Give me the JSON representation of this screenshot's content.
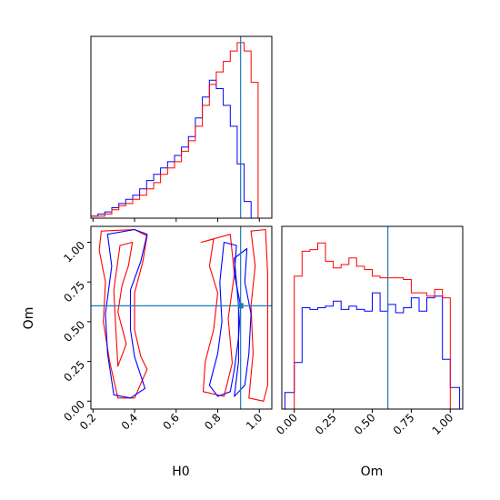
{
  "chart_data": [
    {
      "panel": "H0 marginal",
      "type": "histogram-step",
      "xlim": [
        0.19,
        1.06
      ],
      "truth_x": 0.91,
      "bin_edges": [
        0.19,
        0.2235,
        0.257,
        0.2905,
        0.324,
        0.3575,
        0.391,
        0.4245,
        0.458,
        0.4915,
        0.525,
        0.5585,
        0.592,
        0.6255,
        0.659,
        0.6925,
        0.726,
        0.7595,
        0.793,
        0.8265,
        0.86,
        0.8935,
        0.927,
        0.9605,
        0.994,
        1.0275,
        1.061
      ],
      "series": [
        {
          "name": "",
          "color": "#0000ff",
          "values": [
            1,
            2,
            3,
            5,
            7,
            9,
            11,
            14,
            18,
            21,
            24,
            27,
            30,
            34,
            39,
            48,
            58,
            66,
            62,
            54,
            44,
            26,
            8,
            0,
            0,
            0
          ]
        },
        {
          "name": "",
          "color": "#ff0000",
          "values": [
            1,
            1,
            2,
            4,
            6,
            7,
            9,
            11,
            14,
            17,
            21,
            24,
            27,
            32,
            37,
            44,
            54,
            64,
            70,
            75,
            80,
            84,
            80,
            65,
            0,
            0
          ]
        }
      ],
      "ylim": [
        0,
        87
      ]
    },
    {
      "panel": "Om marginal",
      "type": "histogram-step",
      "xlim": [
        -0.08,
        1.08
      ],
      "truth_x": 0.6,
      "xticks": [
        "0.00",
        "0.25",
        "0.50",
        "0.75",
        "1.00"
      ],
      "xlabel": "Om",
      "bin_edges": [
        -0.06,
        0.0,
        0.05,
        0.1,
        0.15,
        0.2,
        0.25,
        0.3,
        0.35,
        0.4,
        0.45,
        0.5,
        0.55,
        0.6,
        0.65,
        0.7,
        0.75,
        0.8,
        0.85,
        0.9,
        0.95,
        1.0,
        1.06
      ],
      "series": [
        {
          "name": "",
          "color": "#0000ff",
          "values": [
            10,
            28,
            61,
            60,
            61,
            62,
            65,
            60,
            62,
            60,
            59,
            70,
            59,
            63,
            58,
            61,
            67,
            59,
            67,
            68,
            30,
            13
          ]
        },
        {
          "name": "",
          "color": "#ff0000",
          "values": [
            0,
            80,
            95,
            96,
            100,
            89,
            85,
            87,
            91,
            86,
            84,
            80,
            79,
            79,
            79,
            78,
            70,
            70,
            68,
            72,
            67,
            0
          ]
        }
      ],
      "ylim": [
        0,
        110
      ]
    },
    {
      "panel": "H0 vs Om joint",
      "type": "contour",
      "xlim": [
        0.19,
        1.06
      ],
      "ylim": [
        -0.05,
        1.1
      ],
      "xticks": [
        "0.2",
        "0.4",
        "0.6",
        "0.8",
        "1.0"
      ],
      "yticks": [
        "0.00",
        "0.25",
        "0.50",
        "0.75",
        "1.00"
      ],
      "xlabel": "H0",
      "ylabel": "Om",
      "truth": {
        "x": 0.91,
        "y": 0.6
      },
      "series": [
        {
          "name": "",
          "color": "#ff0000",
          "contours": [
            [
              [
                0.24,
                1.07
              ],
              [
                0.4,
                1.08
              ],
              [
                0.46,
                1.04
              ],
              [
                0.44,
                0.88
              ],
              [
                0.4,
                0.68
              ],
              [
                0.4,
                0.45
              ],
              [
                0.43,
                0.28
              ],
              [
                0.46,
                0.2
              ],
              [
                0.42,
                0.08
              ],
              [
                0.4,
                0.02
              ],
              [
                0.32,
                0.02
              ],
              [
                0.28,
                0.25
              ],
              [
                0.25,
                0.5
              ],
              [
                0.26,
                0.75
              ],
              [
                0.23,
                0.95
              ],
              [
                0.24,
                1.07
              ]
            ],
            [
              [
                0.33,
                0.98
              ],
              [
                0.39,
                1.0
              ],
              [
                0.37,
                0.85
              ],
              [
                0.34,
                0.73
              ],
              [
                0.32,
                0.56
              ],
              [
                0.36,
                0.36
              ],
              [
                0.32,
                0.22
              ],
              [
                0.31,
                0.45
              ],
              [
                0.3,
                0.7
              ],
              [
                0.33,
                0.98
              ]
            ],
            [
              [
                0.72,
                1.0
              ],
              [
                0.78,
                1.02
              ],
              [
                0.76,
                0.85
              ],
              [
                0.8,
                0.68
              ],
              [
                0.78,
                0.45
              ],
              [
                0.74,
                0.25
              ],
              [
                0.73,
                0.06
              ],
              [
                0.83,
                0.03
              ],
              [
                0.87,
                0.24
              ],
              [
                0.85,
                0.52
              ],
              [
                0.88,
                0.8
              ],
              [
                0.86,
                1.05
              ],
              [
                0.72,
                1.0
              ]
            ],
            [
              [
                0.96,
                1.07
              ],
              [
                1.03,
                1.08
              ],
              [
                1.04,
                0.8
              ],
              [
                1.04,
                0.45
              ],
              [
                1.04,
                0.1
              ],
              [
                1.02,
                0.0
              ],
              [
                0.95,
                0.02
              ],
              [
                0.97,
                0.3
              ],
              [
                0.96,
                0.6
              ],
              [
                0.98,
                0.85
              ],
              [
                0.96,
                1.07
              ]
            ]
          ]
        },
        {
          "name": "",
          "color": "#0000ff",
          "contours": [
            [
              [
                0.27,
                1.05
              ],
              [
                0.4,
                1.08
              ],
              [
                0.46,
                1.05
              ],
              [
                0.43,
                0.88
              ],
              [
                0.38,
                0.7
              ],
              [
                0.38,
                0.45
              ],
              [
                0.4,
                0.28
              ],
              [
                0.45,
                0.08
              ],
              [
                0.38,
                0.02
              ],
              [
                0.3,
                0.04
              ],
              [
                0.27,
                0.3
              ],
              [
                0.26,
                0.55
              ],
              [
                0.29,
                0.85
              ],
              [
                0.27,
                1.05
              ]
            ],
            [
              [
                0.83,
                1.0
              ],
              [
                0.89,
                0.98
              ],
              [
                0.88,
                0.8
              ],
              [
                0.91,
                0.6
              ],
              [
                0.9,
                0.4
              ],
              [
                0.88,
                0.2
              ],
              [
                0.86,
                0.06
              ],
              [
                0.8,
                0.03
              ],
              [
                0.76,
                0.1
              ],
              [
                0.8,
                0.3
              ],
              [
                0.82,
                0.5
              ],
              [
                0.81,
                0.75
              ],
              [
                0.83,
                1.0
              ]
            ],
            [
              [
                0.88,
                0.9
              ],
              [
                0.94,
                0.96
              ],
              [
                0.93,
                0.75
              ],
              [
                0.96,
                0.55
              ],
              [
                0.95,
                0.3
              ],
              [
                0.93,
                0.1
              ],
              [
                0.88,
                0.03
              ],
              [
                0.9,
                0.25
              ],
              [
                0.9,
                0.6
              ],
              [
                0.88,
                0.9
              ]
            ]
          ]
        }
      ]
    }
  ]
}
